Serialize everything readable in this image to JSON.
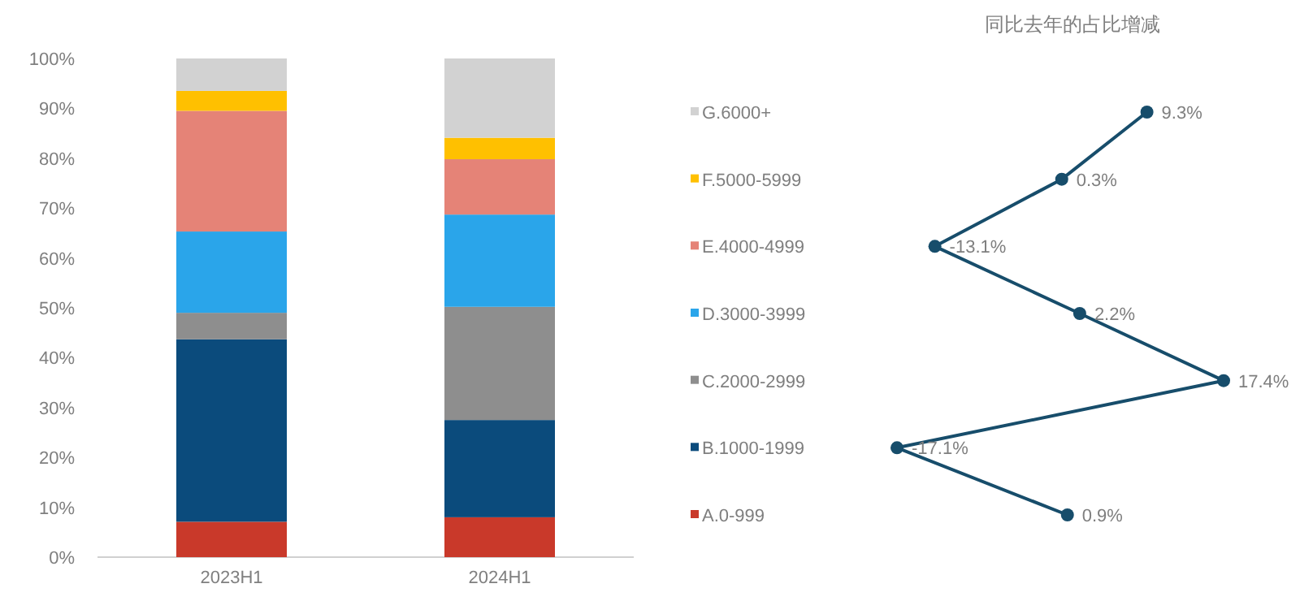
{
  "chart_data": [
    {
      "type": "bar",
      "stacked": true,
      "categories": [
        "2023H1",
        "2024H1"
      ],
      "ylim": [
        0,
        100
      ],
      "yticks": [
        {
          "value": 0,
          "label": "0%"
        },
        {
          "value": 10,
          "label": "10%"
        },
        {
          "value": 20,
          "label": "20%"
        },
        {
          "value": 30,
          "label": "30%"
        },
        {
          "value": 40,
          "label": "40%"
        },
        {
          "value": 50,
          "label": "50%"
        },
        {
          "value": 60,
          "label": "60%"
        },
        {
          "value": 70,
          "label": "70%"
        },
        {
          "value": 80,
          "label": "80%"
        },
        {
          "value": 90,
          "label": "90%"
        },
        {
          "value": 100,
          "label": "100%"
        }
      ],
      "series": [
        {
          "color": "#c9392a",
          "values": [
            7.1,
            8.0
          ]
        },
        {
          "color": "#0b4b7c",
          "values": [
            36.6,
            19.5
          ]
        },
        {
          "color": "#8e8e8e",
          "values": [
            5.3,
            22.7
          ]
        },
        {
          "color": "#2aa5ea",
          "values": [
            16.3,
            18.5
          ]
        },
        {
          "color": "#e58377",
          "values": [
            24.2,
            11.1
          ]
        },
        {
          "color": "#ffc000",
          "values": [
            4.0,
            4.3
          ]
        },
        {
          "color": "#d2d2d2",
          "values": [
            6.5,
            15.9
          ]
        }
      ]
    },
    {
      "type": "line",
      "orientation": "horizontal",
      "title": "同比去年的占比增减",
      "categories": [
        "G.6000+",
        "F.5000-5999",
        "E.4000-4999",
        "D.3000-3999",
        "C.2000-2999",
        "B.1000-1999",
        "A.0-999"
      ],
      "marker": "circle",
      "line_style": "solid",
      "series": [
        {
          "color": "#174d6b",
          "values": [
            9.3,
            0.3,
            -13.1,
            2.2,
            17.4,
            -17.1,
            0.9
          ],
          "value_labels": [
            "9.3%",
            "0.3%",
            "-13.1%",
            "2.2%",
            "17.4%",
            "-17.1%",
            "0.9%"
          ]
        }
      ]
    }
  ]
}
